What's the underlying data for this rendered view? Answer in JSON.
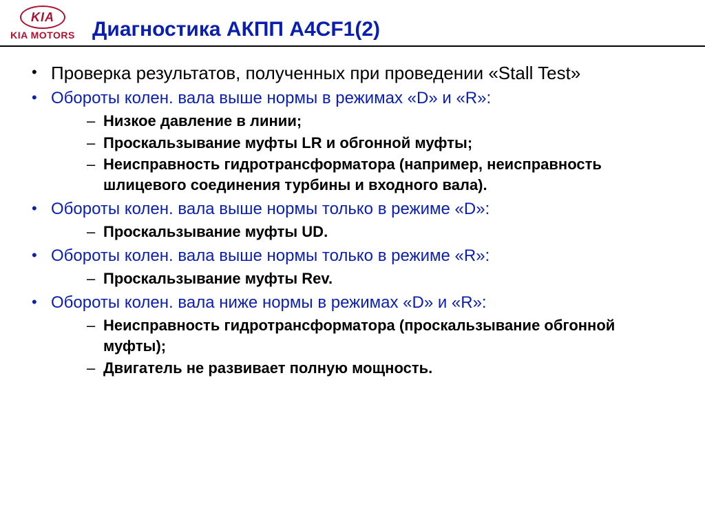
{
  "logo": {
    "oval_text": "KIA",
    "subtext": "KIA MOTORS"
  },
  "title": "Диагностика АКПП A4CF1(2)",
  "colors": {
    "brand_red": "#b01030",
    "link_blue": "#0a1fb0",
    "text_black": "#000000",
    "background": "#ffffff"
  },
  "typography": {
    "title_fontsize": 30,
    "level1_fontsize": 26,
    "level2_blue_fontsize": 24,
    "level3_bold_fontsize": 22,
    "font_family": "Arial"
  },
  "items": [
    {
      "kind": "level1-black",
      "text": "Проверка результатов, полученных при проведении «Stall Test»"
    },
    {
      "kind": "level1-blue",
      "text": "Обороты колен. вала выше нормы в режимах «D» и «R»:",
      "sub": [
        "Низкое давление в линии;",
        "Проскальзывание муфты LR и обгонной муфты;",
        "Неисправность гидротрансформатора (например, неисправность шлицевого соединения турбины и входного вала)."
      ]
    },
    {
      "kind": "level1-blue",
      "text": "Обороты колен. вала выше нормы только в режиме «D»:",
      "sub": [
        "Проскальзывание муфты UD."
      ]
    },
    {
      "kind": "level1-blue",
      "text": "Обороты колен. вала выше нормы только в режиме «R»:",
      "sub": [
        "Проскальзывание муфты Rev."
      ]
    },
    {
      "kind": "level1-blue",
      "text": "Обороты колен. вала ниже нормы в режимах «D» и «R»:",
      "sub": [
        "Неисправность гидротрансформатора (проскальзывание обгонной муфты);",
        "Двигатель не развивает полную мощность."
      ]
    }
  ]
}
